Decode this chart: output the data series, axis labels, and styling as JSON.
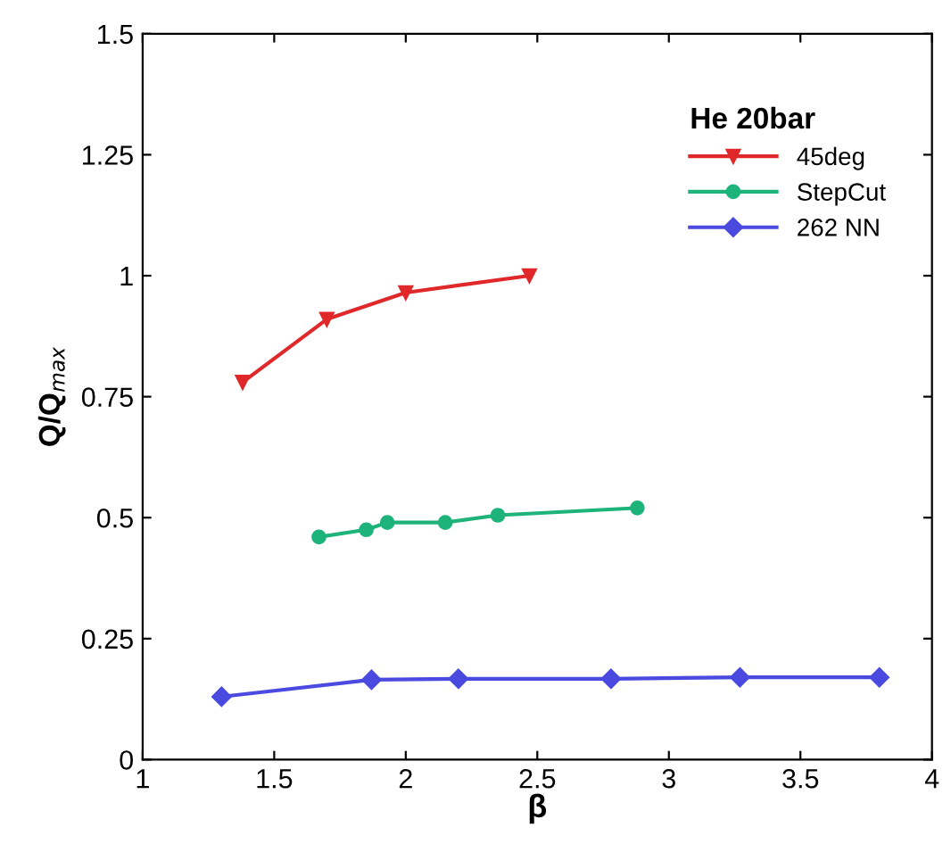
{
  "chart_data": {
    "type": "line",
    "xlabel": "β",
    "ylabel": "Q/Q$_{max}$",
    "xlim": [
      1,
      4
    ],
    "xticks": [
      1,
      1.5,
      2,
      2.5,
      3,
      3.5,
      4
    ],
    "ylim": [
      0,
      1.5
    ],
    "yticks": [
      0,
      0.25,
      0.5,
      0.75,
      1,
      1.25,
      1.5
    ],
    "legend": "top right",
    "legend_title": "He 20bar",
    "grid": false,
    "line_style": "solid",
    "series": [
      {
        "name": "45deg",
        "color": "#e0282a",
        "marker": "triangle",
        "x": [
          1.38,
          1.7,
          2.0,
          2.47
        ],
        "values": [
          0.78,
          0.91,
          0.965,
          1.0
        ]
      },
      {
        "name": "StepCut",
        "color": "#1db37a",
        "marker": "circle",
        "x": [
          1.67,
          1.85,
          1.93,
          2.15,
          2.35,
          2.88
        ],
        "values": [
          0.46,
          0.475,
          0.49,
          0.49,
          0.505,
          0.52
        ]
      },
      {
        "name": "262 NN",
        "color": "#4a4ae0",
        "marker": "diamond",
        "x": [
          1.3,
          1.87,
          2.2,
          2.78,
          3.27,
          3.8
        ],
        "values": [
          0.13,
          0.165,
          0.167,
          0.167,
          0.17,
          0.17
        ]
      }
    ]
  }
}
